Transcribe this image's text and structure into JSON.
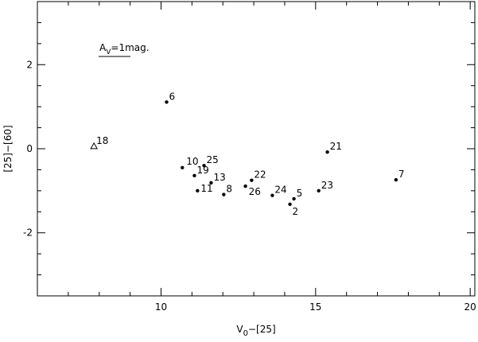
{
  "chart_data": {
    "type": "scatter",
    "xlabel": {
      "main": "V",
      "sub": "0",
      "rest": "−[25]"
    },
    "ylabel": "[25]−[60]",
    "annotation": {
      "main": "A",
      "sub": "V",
      "rest": "=1mag."
    },
    "x": [
      10.18,
      7.83,
      10.69,
      11.39,
      11.08,
      11.62,
      11.18,
      12.03,
      12.93,
      12.73,
      13.6,
      14.3,
      14.17,
      15.1,
      15.38,
      17.6
    ],
    "y": [
      1.11,
      0.06,
      -0.45,
      -0.4,
      -0.64,
      -0.81,
      -1.0,
      -1.09,
      -0.75,
      -0.89,
      -1.11,
      -1.19,
      -1.32,
      -1.0,
      -0.08,
      -0.74
    ],
    "labels": [
      "6",
      "18",
      "10",
      "25",
      "19",
      "13",
      "11",
      "8",
      "22",
      "26",
      "24",
      "5",
      "2",
      "23",
      "21",
      "7"
    ],
    "markers": [
      "dot",
      "triangle",
      "dot",
      "dot",
      "dot",
      "dot",
      "dot",
      "dot",
      "dot",
      "dot",
      "dot",
      "dot",
      "dot",
      "dot",
      "dot",
      "dot"
    ],
    "color": "#000000",
    "xlim": [
      6,
      20.15
    ],
    "ylim": [
      -3.5,
      3.5
    ],
    "xticks": [
      10,
      15,
      20
    ],
    "yticks": [
      -2,
      0,
      2
    ],
    "xminorticks": [
      7,
      8,
      9,
      11,
      12,
      13,
      14,
      16,
      17,
      18,
      19
    ],
    "yminorticks": [
      -3,
      -2.5,
      -1.5,
      -1,
      -0.5,
      0.5,
      1,
      1.5,
      2.5,
      3
    ]
  }
}
